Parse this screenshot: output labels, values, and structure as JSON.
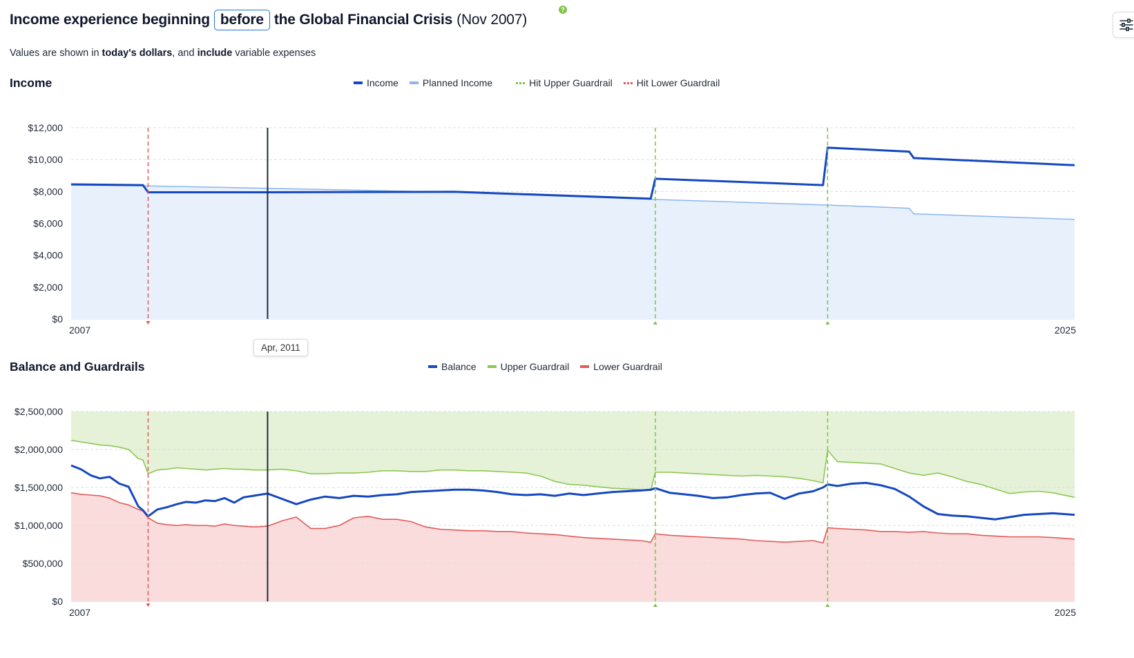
{
  "header": {
    "title_prefix": "Income experience beginning",
    "title_pill": "before",
    "title_event": "the Global Financial Crisis",
    "title_date": "(Nov 2007)",
    "help_icon": "?",
    "settings_icon": "sliders-icon",
    "subtitle_a": "Values are shown in ",
    "subtitle_b": "today's dollars",
    "subtitle_c": ", and ",
    "subtitle_d": "include",
    "subtitle_e": " variable expenses"
  },
  "income_section": {
    "title": "Income",
    "legend": [
      {
        "label": "Income",
        "color": "#1447c0",
        "style": "solid"
      },
      {
        "label": "Planned Income",
        "color": "#8ab6ee",
        "style": "solid"
      },
      {
        "label": "Hit Upper Guardrail",
        "color": "#7cc242",
        "style": "dotted"
      },
      {
        "label": "Hit Lower Guardrail",
        "color": "#e05a5a",
        "style": "dotted"
      }
    ]
  },
  "balance_section": {
    "title": "Balance and Guardrails",
    "legend": [
      {
        "label": "Balance",
        "color": "#1447c0",
        "style": "solid"
      },
      {
        "label": "Upper Guardrail",
        "color": "#8cc751",
        "style": "solid"
      },
      {
        "label": "Lower Guardrail",
        "color": "#e25a5a",
        "style": "solid"
      }
    ]
  },
  "tooltip": {
    "label": "Apr, 2011"
  },
  "colors": {
    "income": "#1447c0",
    "planned": "#8ab6ee",
    "planned_fill": "#e8f0fc",
    "upper": "#8cc751",
    "upper_fill": "#e5f2d8",
    "lower": "#e25a5a",
    "lower_fill": "#fadcdc",
    "cursor": "#1f2937",
    "grid": "#d9dde3"
  },
  "chart_data": [
    {
      "type": "line",
      "title": "Income",
      "x_range": [
        2007.83,
        2025.3
      ],
      "x_tick_labels": [
        "2007",
        "2025"
      ],
      "y_range": [
        0,
        12000
      ],
      "y_ticks": [
        "$0",
        "$2,000",
        "$4,000",
        "$6,000",
        "$8,000",
        "$10,000",
        "$12,000"
      ],
      "y_tick_values": [
        0,
        2000,
        4000,
        6000,
        8000,
        10000,
        12000
      ],
      "cursor_x": 2011.25,
      "lower_guardrail_hits": [
        2009.17
      ],
      "upper_guardrail_hits": [
        2018.0,
        2021.0
      ],
      "series": [
        {
          "name": "Income",
          "x": [
            2007.83,
            2009.08,
            2009.17,
            2011.25,
            2014.5,
            2017.92,
            2018.0,
            2020.92,
            2021.0,
            2022.42,
            2022.5,
            2025.3
          ],
          "y": [
            8450,
            8400,
            7950,
            7950,
            7980,
            7550,
            8800,
            8400,
            10750,
            10500,
            10100,
            9650
          ]
        },
        {
          "name": "Planned Income",
          "x": [
            2007.83,
            2009.17,
            2011.25,
            2014.5,
            2018.0,
            2021.0,
            2022.42,
            2022.5,
            2025.3
          ],
          "y": [
            8400,
            8350,
            8200,
            7950,
            7500,
            7150,
            6950,
            6600,
            6250
          ]
        }
      ]
    },
    {
      "type": "area",
      "title": "Balance and Guardrails",
      "x_range": [
        2007.83,
        2025.3
      ],
      "x_tick_labels": [
        "2007",
        "2025"
      ],
      "y_range": [
        0,
        2500000
      ],
      "y_ticks": [
        "$0",
        "$500,000",
        "$1,000,000",
        "$1,500,000",
        "$2,000,000",
        "$2,500,000"
      ],
      "y_tick_values": [
        0,
        500000,
        1000000,
        1500000,
        2000000,
        2500000
      ],
      "cursor_x": 2011.25,
      "lower_guardrail_hits": [
        2009.17
      ],
      "upper_guardrail_hits": [
        2018.0,
        2021.0
      ],
      "x": [
        2007.83,
        2008.0,
        2008.17,
        2008.33,
        2008.5,
        2008.67,
        2008.83,
        2009.0,
        2009.08,
        2009.17,
        2009.33,
        2009.5,
        2009.67,
        2009.83,
        2010.0,
        2010.17,
        2010.33,
        2010.5,
        2010.67,
        2010.83,
        2011.0,
        2011.25,
        2011.5,
        2011.75,
        2012.0,
        2012.25,
        2012.5,
        2012.75,
        2013.0,
        2013.25,
        2013.5,
        2013.75,
        2014.0,
        2014.25,
        2014.5,
        2014.75,
        2015.0,
        2015.25,
        2015.5,
        2015.75,
        2016.0,
        2016.25,
        2016.5,
        2016.75,
        2017.0,
        2017.25,
        2017.5,
        2017.75,
        2017.92,
        2018.0,
        2018.25,
        2018.5,
        2018.75,
        2019.0,
        2019.25,
        2019.5,
        2019.75,
        2020.0,
        2020.25,
        2020.5,
        2020.75,
        2020.92,
        2021.0,
        2021.17,
        2021.42,
        2021.67,
        2021.92,
        2022.17,
        2022.42,
        2022.67,
        2022.92,
        2023.17,
        2023.42,
        2023.67,
        2023.92,
        2024.17,
        2024.42,
        2024.67,
        2024.92,
        2025.3
      ],
      "series": [
        {
          "name": "Balance",
          "y": [
            1790000,
            1740000,
            1660000,
            1620000,
            1640000,
            1550000,
            1510000,
            1250000,
            1200000,
            1120000,
            1210000,
            1240000,
            1280000,
            1310000,
            1300000,
            1330000,
            1320000,
            1360000,
            1300000,
            1370000,
            1390000,
            1420000,
            1350000,
            1280000,
            1340000,
            1380000,
            1360000,
            1390000,
            1380000,
            1400000,
            1410000,
            1440000,
            1450000,
            1460000,
            1470000,
            1470000,
            1460000,
            1440000,
            1410000,
            1400000,
            1410000,
            1390000,
            1420000,
            1400000,
            1420000,
            1440000,
            1450000,
            1460000,
            1470000,
            1490000,
            1430000,
            1410000,
            1390000,
            1360000,
            1370000,
            1400000,
            1420000,
            1430000,
            1350000,
            1420000,
            1450000,
            1500000,
            1540000,
            1520000,
            1550000,
            1560000,
            1530000,
            1480000,
            1380000,
            1250000,
            1150000,
            1130000,
            1120000,
            1100000,
            1080000,
            1110000,
            1140000,
            1150000,
            1160000,
            1140000
          ]
        },
        {
          "name": "Upper Guardrail",
          "y": [
            2120000,
            2100000,
            2080000,
            2060000,
            2050000,
            2030000,
            2000000,
            1880000,
            1860000,
            1680000,
            1730000,
            1740000,
            1760000,
            1750000,
            1740000,
            1730000,
            1740000,
            1750000,
            1740000,
            1740000,
            1730000,
            1730000,
            1740000,
            1720000,
            1680000,
            1680000,
            1690000,
            1690000,
            1700000,
            1720000,
            1720000,
            1710000,
            1710000,
            1730000,
            1730000,
            1720000,
            1720000,
            1710000,
            1700000,
            1690000,
            1650000,
            1580000,
            1540000,
            1530000,
            1510000,
            1490000,
            1480000,
            1470000,
            1460000,
            1700000,
            1700000,
            1690000,
            1680000,
            1670000,
            1660000,
            1650000,
            1660000,
            1650000,
            1640000,
            1620000,
            1590000,
            1560000,
            1990000,
            1840000,
            1830000,
            1820000,
            1810000,
            1750000,
            1690000,
            1660000,
            1690000,
            1640000,
            1580000,
            1540000,
            1480000,
            1420000,
            1440000,
            1450000,
            1430000,
            1370000
          ]
        },
        {
          "name": "Lower Guardrail",
          "y": [
            1430000,
            1410000,
            1400000,
            1390000,
            1360000,
            1300000,
            1270000,
            1210000,
            1190000,
            1100000,
            1030000,
            1010000,
            1000000,
            1010000,
            1000000,
            1000000,
            990000,
            1020000,
            1000000,
            990000,
            980000,
            990000,
            1060000,
            1110000,
            960000,
            960000,
            1000000,
            1100000,
            1120000,
            1080000,
            1080000,
            1050000,
            980000,
            950000,
            940000,
            930000,
            930000,
            920000,
            920000,
            900000,
            890000,
            880000,
            860000,
            840000,
            830000,
            820000,
            810000,
            800000,
            780000,
            890000,
            870000,
            860000,
            850000,
            840000,
            830000,
            820000,
            800000,
            790000,
            780000,
            790000,
            800000,
            770000,
            970000,
            960000,
            950000,
            940000,
            920000,
            920000,
            910000,
            920000,
            900000,
            890000,
            890000,
            870000,
            860000,
            850000,
            850000,
            850000,
            840000,
            820000
          ]
        }
      ]
    }
  ]
}
